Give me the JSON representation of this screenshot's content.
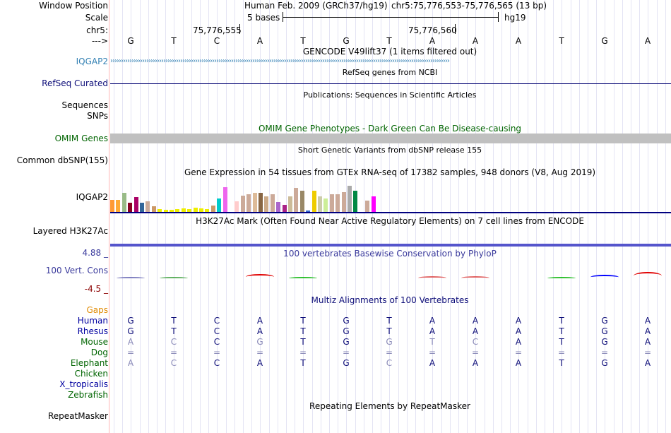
{
  "header": {
    "window_position_label": "Window Position",
    "assembly": "Human Feb. 2009 (GRCh37/hg19)",
    "position": "chr5:75,776,553-75,776,565 (13 bp)",
    "scale_label": "Scale",
    "scale_text": "5 bases",
    "scale_db": "hg19",
    "chrom_label": "chr5:",
    "pos_tick1": "75,776,555",
    "pos_tick2": "75,776,560",
    "strand_label": "--->"
  },
  "bases": [
    "G",
    "T",
    "C",
    "A",
    "T",
    "G",
    "T",
    "A",
    "A",
    "A",
    "T",
    "G",
    "A"
  ],
  "tracks": {
    "gencode_title": "GENCODE V49lift37 (1 items filtered out)",
    "iqgap2_label": "IQGAP2",
    "refseq_title": "RefSeq genes from NCBI",
    "refseq_label": "RefSeq Curated",
    "publications_title": "Publications: Sequences in Scientific Articles",
    "sequences_label": "Sequences",
    "snps_label": "SNPs",
    "omim_title": "OMIM Gene Phenotypes - Dark Green Can Be Disease-causing",
    "omim_label": "OMIM Genes",
    "dbsnp_title": "Short Genetic Variants from dbSNP release 155",
    "dbsnp_label": "Common dbSNP(155)",
    "gtex_title": "Gene Expression in 54 tissues from GTEx RNA-seq of 17382 samples, 948 donors (V8, Aug 2019)",
    "gtex_label": "IQGAP2",
    "h3k27ac_title": "H3K27Ac Mark (Often Found Near Active Regulatory Elements) on 7 cell lines from ENCODE",
    "h3k27ac_label": "Layered H3K27Ac",
    "phylop_title": "100 vertebrates Basewise Conservation by PhyloP",
    "phylop_max": "4.88 _",
    "phylop_label": "100 Vert. Cons",
    "phylop_min": "-4.5 _",
    "multiz_title": "Multiz Alignments of 100 Vertebrates",
    "gaps_label": "Gaps",
    "repeat_title": "Repeating Elements by RepeatMasker",
    "repeat_label": "RepeatMasker"
  },
  "alignment": [
    {
      "species": "Human",
      "color": "#0000a0",
      "seq": [
        "G",
        "T",
        "C",
        "A",
        "T",
        "G",
        "T",
        "A",
        "A",
        "A",
        "T",
        "G",
        "A"
      ],
      "faded": []
    },
    {
      "species": "Rhesus",
      "color": "#0000a0",
      "seq": [
        "G",
        "T",
        "C",
        "A",
        "T",
        "G",
        "T",
        "A",
        "A",
        "A",
        "T",
        "G",
        "A"
      ],
      "faded": []
    },
    {
      "species": "Mouse",
      "color": "#006400",
      "seq": [
        "A",
        "C",
        "C",
        "G",
        "T",
        "G",
        "G",
        "T",
        "C",
        "A",
        "T",
        "G",
        "A"
      ],
      "faded": [
        0,
        1,
        3,
        6,
        7,
        8
      ]
    },
    {
      "species": "Dog",
      "color": "#006400",
      "seq": [
        "=",
        "=",
        "=",
        "=",
        "=",
        "=",
        "=",
        "=",
        "=",
        "=",
        "=",
        "=",
        "="
      ],
      "faded": [
        0,
        1,
        2,
        3,
        4,
        5,
        6,
        7,
        8,
        9,
        10,
        11,
        12
      ]
    },
    {
      "species": "Elephant",
      "color": "#006400",
      "seq": [
        "A",
        "C",
        "C",
        "A",
        "T",
        "G",
        "C",
        "A",
        "A",
        "A",
        "T",
        "G",
        "A"
      ],
      "faded": [
        0,
        1,
        6
      ]
    },
    {
      "species": "Chicken",
      "color": "#006400",
      "seq": [],
      "faded": []
    },
    {
      "species": "X_tropicalis",
      "color": "#0000a0",
      "seq": [],
      "faded": []
    },
    {
      "species": "Zebrafish",
      "color": "#006400",
      "seq": [],
      "faded": []
    }
  ],
  "colors": {
    "gencode": "#3380b3",
    "refseq": "#0c0c78",
    "omim": "#006400",
    "phylop": "#3a3a9c",
    "phylop_min": "#8b0000",
    "gaps": "#e08a00",
    "ucsc_blue": "#000080"
  },
  "gtex_bars": [
    {
      "v": 0.36,
      "c": "#ff9a33"
    },
    {
      "v": 0.36,
      "c": "#ffaa33"
    },
    {
      "v": 0.56,
      "c": "#99bb88"
    },
    {
      "v": 0.28,
      "c": "#880022"
    },
    {
      "v": 0.44,
      "c": "#aa0066"
    },
    {
      "v": 0.28,
      "c": "#336699"
    },
    {
      "v": 0.32,
      "c": "#ccaa99"
    },
    {
      "v": 0.16,
      "c": "#cc9966"
    },
    {
      "v": 0.08,
      "c": "#eeee00"
    },
    {
      "v": 0.06,
      "c": "#eeee00"
    },
    {
      "v": 0.06,
      "c": "#eeee00"
    },
    {
      "v": 0.08,
      "c": "#eeee00"
    },
    {
      "v": 0.1,
      "c": "#eeee00"
    },
    {
      "v": 0.08,
      "c": "#eeee00"
    },
    {
      "v": 0.12,
      "c": "#eeee00"
    },
    {
      "v": 0.1,
      "c": "#eeee00"
    },
    {
      "v": 0.08,
      "c": "#eeee00"
    },
    {
      "v": 0.18,
      "c": "#cc9966"
    },
    {
      "v": 0.4,
      "c": "#00cccc"
    },
    {
      "v": 0.72,
      "c": "#ee66ee"
    },
    {
      "v": 0.26,
      "c": "#ffffff"
    },
    {
      "v": 0.32,
      "c": "#ffcccc"
    },
    {
      "v": 0.48,
      "c": "#ccaa99"
    },
    {
      "v": 0.52,
      "c": "#ccaa99"
    },
    {
      "v": 0.56,
      "c": "#ddbb99"
    },
    {
      "v": 0.56,
      "c": "#886644"
    },
    {
      "v": 0.46,
      "c": "#ccaa88"
    },
    {
      "v": 0.52,
      "c": "#ccaa99"
    },
    {
      "v": 0.3,
      "c": "#aa66cc"
    },
    {
      "v": 0.2,
      "c": "#aa2288"
    },
    {
      "v": 0.46,
      "c": "#ccbb99"
    },
    {
      "v": 0.7,
      "c": "#ccaa99"
    },
    {
      "v": 0.62,
      "c": "#998866"
    },
    {
      "v": 0.04,
      "c": "#3366cc"
    },
    {
      "v": 0.62,
      "c": "#eecc00"
    },
    {
      "v": 0.46,
      "c": "#ccccaa"
    },
    {
      "v": 0.4,
      "c": "#ccee99"
    },
    {
      "v": 0.52,
      "c": "#ccaa99"
    },
    {
      "v": 0.52,
      "c": "#ccaa99"
    },
    {
      "v": 0.58,
      "c": "#ccaa99"
    },
    {
      "v": 0.78,
      "c": "#aaaaaa"
    },
    {
      "v": 0.62,
      "c": "#008844"
    },
    {
      "v": 0.28,
      "c": "#ffffff"
    },
    {
      "v": 0.34,
      "c": "#ccaa99"
    },
    {
      "v": 0.46,
      "c": "#ff00ff"
    }
  ],
  "phylop_blips": [
    {
      "col": 0,
      "h": 0.2,
      "c": "#8080c0"
    },
    {
      "col": 1,
      "h": 0.2,
      "c": "#60b060"
    },
    {
      "col": 3,
      "h": 0.6,
      "c": "#e00000"
    },
    {
      "col": 4,
      "h": 0.2,
      "c": "#30c030"
    },
    {
      "col": 7,
      "h": 0.3,
      "c": "#e06060"
    },
    {
      "col": 8,
      "h": 0.3,
      "c": "#e06060"
    },
    {
      "col": 10,
      "h": 0.2,
      "c": "#30c030"
    },
    {
      "col": 11,
      "h": 0.5,
      "c": "#0000ff"
    },
    {
      "col": 12,
      "h": 0.9,
      "c": "#e00000"
    }
  ]
}
